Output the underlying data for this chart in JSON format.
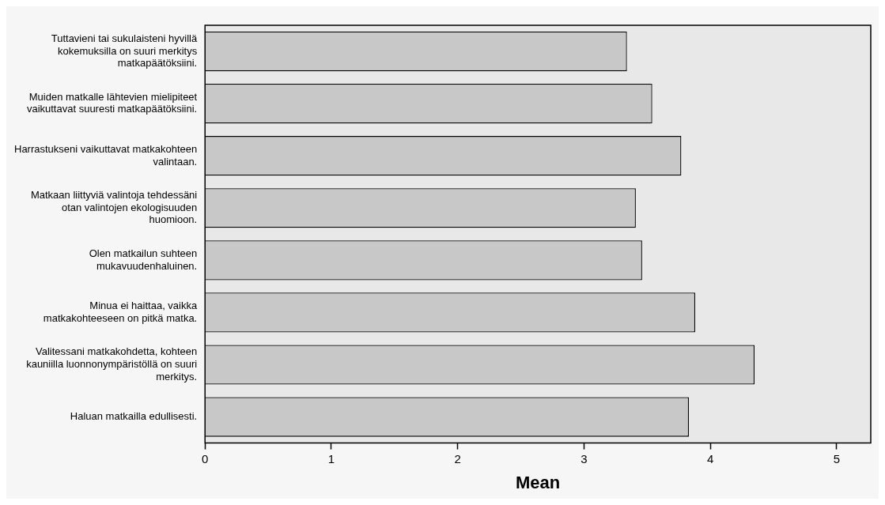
{
  "chart_data": {
    "type": "bar",
    "orientation": "horizontal",
    "xlabel": "Mean",
    "categories": [
      "Tuttavieni tai sukulaisteni hyvillä kokemuksilla on suuri merkitys matkapäätöksiini.",
      "Muiden matkalle lähtevien mielipiteet vaikuttavat suuresti matkapäätöksiini.",
      "Harrastukseni vaikuttavat matkakohteen valintaan.",
      "Matkaan liittyviä valintoja tehdessäni otan valintojen ekologisuuden huomioon.",
      "Olen matkailun suhteen mukavuudenhaluinen.",
      "Minua ei haittaa, vaikka matkakohteeseen on pitkä matka.",
      "Valitessani matkakohdetta, kohteen kauniilla luonnonympäristöllä on suuri merkitys.",
      "Haluan matkailla edullisesti."
    ],
    "values": [
      3.34,
      3.54,
      3.77,
      3.41,
      3.46,
      3.88,
      4.35,
      3.83
    ],
    "color": "#c8c8c8",
    "xlim": [
      0,
      5.27
    ],
    "xticks": [
      0,
      1,
      2,
      3,
      4,
      5
    ],
    "grid": false,
    "legend": false
  }
}
